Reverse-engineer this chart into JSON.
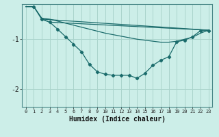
{
  "xlabel": "Humidex (Indice chaleur)",
  "background_color": "#cceee8",
  "grid_color": "#aad4cc",
  "line_color": "#1a6b6b",
  "x_ticks": [
    0,
    1,
    2,
    3,
    4,
    5,
    6,
    7,
    8,
    9,
    10,
    11,
    12,
    13,
    14,
    15,
    16,
    17,
    18,
    19,
    20,
    21,
    22,
    23
  ],
  "y_ticks": [
    -2,
    -1
  ],
  "ylim": [
    -2.35,
    -0.3
  ],
  "xlim": [
    -0.5,
    23.5
  ],
  "upper_line1_x": [
    0,
    1,
    2,
    23
  ],
  "upper_line1_y": [
    -0.35,
    -0.35,
    -0.6,
    -0.82
  ],
  "upper_line2_x": [
    2,
    3,
    23
  ],
  "upper_line2_y": [
    -0.6,
    -0.66,
    -0.82
  ],
  "marker_line_x": [
    1,
    2,
    3,
    4,
    5,
    6,
    7,
    8,
    9,
    10,
    11,
    12,
    13,
    14,
    15,
    16,
    17,
    18,
    19,
    20,
    21,
    22,
    23
  ],
  "marker_line_y": [
    -0.35,
    -0.6,
    -0.66,
    -0.8,
    -0.95,
    -1.1,
    -1.25,
    -1.5,
    -1.65,
    -1.7,
    -1.72,
    -1.72,
    -1.72,
    -1.78,
    -1.68,
    -1.52,
    -1.42,
    -1.35,
    -1.05,
    -1.02,
    -0.95,
    -0.83,
    -0.83
  ],
  "upper_smooth_x": [
    0,
    1,
    2,
    3,
    4,
    5,
    6,
    7,
    8,
    9,
    10,
    11,
    12,
    13,
    14,
    15,
    16,
    17,
    18,
    19,
    20,
    21,
    22,
    23
  ],
  "upper_smooth_y": [
    -0.35,
    -0.35,
    -0.58,
    -0.6,
    -0.64,
    -0.68,
    -0.72,
    -0.76,
    -0.8,
    -0.84,
    -0.88,
    -0.91,
    -0.94,
    -0.97,
    -1.0,
    -1.02,
    -1.04,
    -1.06,
    -1.06,
    -1.04,
    -1.0,
    -0.96,
    -0.88,
    -0.82
  ]
}
